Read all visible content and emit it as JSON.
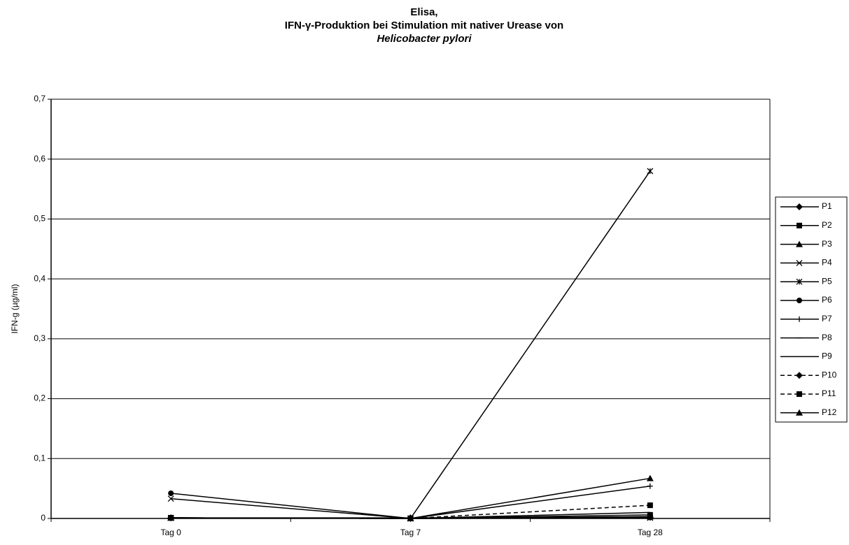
{
  "chart_data": {
    "type": "line",
    "title": [
      "Elisa,",
      "IFN-γ-Produktion bei Stimulation mit nativer Urease von",
      "Helicobacter pylori"
    ],
    "y_label": "IFN-g (µg/ml)",
    "categories": [
      "Tag 0",
      "Tag 7",
      "Tag 28"
    ],
    "ylim": [
      0,
      0.7
    ],
    "yticks": [
      0,
      {
        "value": 0.1,
        "label": "0,1"
      },
      {
        "value": 0.2,
        "label": "0,2"
      },
      {
        "value": 0.3,
        "label": "0,3"
      },
      {
        "value": 0.4,
        "label": "0,4"
      },
      {
        "value": 0.5,
        "label": "0,5"
      },
      {
        "value": 0.6,
        "label": "0,6"
      },
      {
        "value": 0.7,
        "label": "0,7"
      }
    ],
    "grid": true,
    "legend": "right",
    "series": [
      {
        "name": "P1",
        "color": "#000000",
        "marker": "diamond",
        "dashed": false,
        "values": [
          0.001,
          0.001,
          0.002
        ]
      },
      {
        "name": "P2",
        "color": "#000000",
        "marker": "square",
        "dashed": false,
        "values": [
          0.001,
          0,
          0.006
        ]
      },
      {
        "name": "P3",
        "color": "#000000",
        "marker": "triangle",
        "dashed": false,
        "values": [
          0.001,
          0,
          0.003
        ]
      },
      {
        "name": "P4",
        "color": "#000000",
        "marker": "x",
        "dashed": false,
        "values": [
          0.033,
          0,
          0.001
        ]
      },
      {
        "name": "P5",
        "color": "#000000",
        "marker": "star",
        "dashed": false,
        "values": [
          0.001,
          0,
          0.58
        ]
      },
      {
        "name": "P6",
        "color": "#000000",
        "marker": "circle",
        "dashed": false,
        "values": [
          0.042,
          0,
          0.002
        ]
      },
      {
        "name": "P7",
        "color": "#000000",
        "marker": "plus",
        "dashed": false,
        "values": [
          0.001,
          0,
          0.054
        ]
      },
      {
        "name": "P8",
        "color": "#000000",
        "marker": "dash",
        "dashed": false,
        "values": [
          0.001,
          0,
          0.003
        ]
      },
      {
        "name": "P9",
        "color": "#000000",
        "marker": "none",
        "dashed": false,
        "values": [
          0.001,
          0,
          0.01
        ]
      },
      {
        "name": "P10",
        "color": "#000000",
        "marker": "diamond",
        "dashed": true,
        "values": [
          0.001,
          0,
          0.002
        ]
      },
      {
        "name": "P11",
        "color": "#000000",
        "marker": "square",
        "dashed": true,
        "values": [
          0.001,
          0,
          0.022
        ]
      },
      {
        "name": "P12",
        "color": "#000000",
        "marker": "triangle",
        "dashed": false,
        "values": [
          0.001,
          0,
          0.067
        ]
      }
    ]
  }
}
